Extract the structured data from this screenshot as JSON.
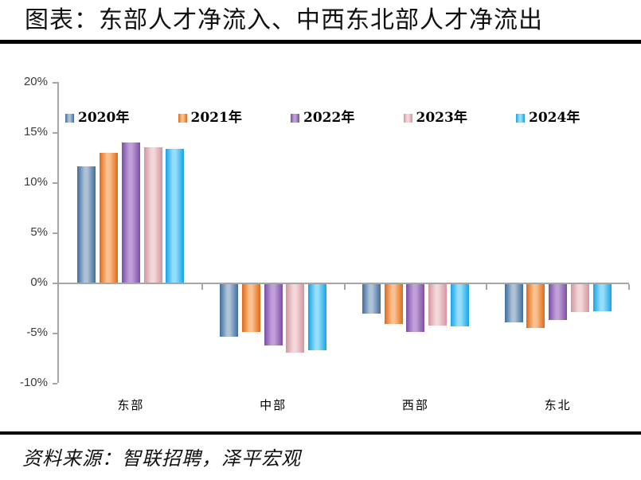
{
  "title": "图表：东部人才净流入、中西东北部人才净流出",
  "source": "资料来源：智联招聘，泽平宏观",
  "chart_data": {
    "type": "bar",
    "title": "图表：东部人才净流入、中西东北部人才净流出",
    "categories": [
      "东部",
      "中部",
      "西部",
      "东北"
    ],
    "series": [
      {
        "name": "2020年",
        "values": [
          11.6,
          -5.2,
          -2.9,
          -3.8
        ],
        "color_dark": "#3E6D9F",
        "color_light": "#AEC2D6"
      },
      {
        "name": "2021年",
        "values": [
          12.9,
          -4.8,
          -4.0,
          -4.4
        ],
        "color_dark": "#E06A16",
        "color_light": "#FAC090"
      },
      {
        "name": "2022年",
        "values": [
          14.0,
          -6.1,
          -4.8,
          -3.6
        ],
        "color_dark": "#7A4EA5",
        "color_light": "#C0A0D8"
      },
      {
        "name": "2023年",
        "values": [
          13.5,
          -6.8,
          -4.1,
          -2.8
        ],
        "color_dark": "#D5939D",
        "color_light": "#F2D8DA"
      },
      {
        "name": "2024年",
        "values": [
          13.3,
          -6.6,
          -4.2,
          -2.7
        ],
        "color_dark": "#14A3E8",
        "color_light": "#97DEFB"
      }
    ],
    "ylabel": "",
    "xlabel": "",
    "ylim": [
      -10,
      20
    ],
    "ytick_step": 5,
    "ytick_labels": [
      "20%",
      "15%",
      "10%",
      "5%",
      "0%",
      "-5%",
      "-10%"
    ],
    "grid": false,
    "legend_position": "top",
    "axis_color": "#A6A6A6",
    "unit": "%"
  }
}
